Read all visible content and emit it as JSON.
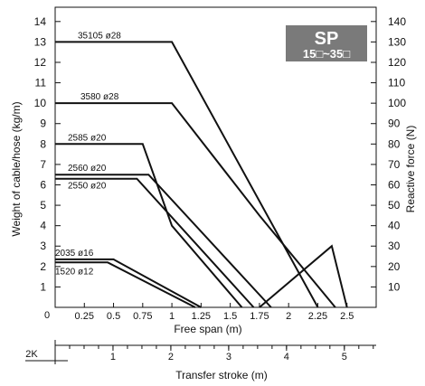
{
  "chart_data": {
    "type": "line",
    "badge": {
      "title": "SP",
      "subtitle": "15□~35□"
    },
    "xlabel": "Free span (m)",
    "ylabel": "Weight of cable/hose (kg/m)",
    "y2label": "Reactive force (N)",
    "xlim": [
      0,
      2.75
    ],
    "ylim": [
      0,
      14.7
    ],
    "y2lim": [
      0,
      147
    ],
    "x_ticks": [
      "0.25",
      "0.5",
      "0.75",
      "1",
      "1.25",
      "1.5",
      "1.75",
      "2",
      "2.25",
      "2.5"
    ],
    "x_tick_values": [
      0.25,
      0.5,
      0.75,
      1,
      1.25,
      1.5,
      1.75,
      2,
      2.25,
      2.5
    ],
    "origin_label": "0",
    "y_ticks": [
      1,
      2,
      3,
      4,
      5,
      6,
      7,
      8,
      9,
      10,
      11,
      12,
      13,
      14
    ],
    "y2_ticks": [
      10,
      20,
      30,
      40,
      50,
      60,
      70,
      80,
      90,
      100,
      110,
      120,
      130,
      140
    ],
    "series": [
      {
        "name": "35105 ø28",
        "points": [
          [
            0,
            13
          ],
          [
            1,
            13
          ],
          [
            2.25,
            0
          ]
        ]
      },
      {
        "name": "3580 ø28",
        "points": [
          [
            0,
            10
          ],
          [
            1,
            10
          ],
          [
            1.75,
            4.5
          ],
          [
            2.4,
            0
          ]
        ]
      },
      {
        "name": "2585 ø20",
        "points": [
          [
            0,
            8
          ],
          [
            0.75,
            8
          ],
          [
            1,
            4
          ],
          [
            1.6,
            0
          ]
        ]
      },
      {
        "name": "2560 ø20",
        "points": [
          [
            0,
            6.5
          ],
          [
            0.8,
            6.5
          ],
          [
            1.85,
            0
          ]
        ]
      },
      {
        "name": "2550 ø20",
        "points": [
          [
            0,
            6.3
          ],
          [
            0.7,
            6.3
          ],
          [
            1.7,
            0
          ]
        ]
      },
      {
        "name": "2035 ø16",
        "points": [
          [
            0,
            2.35
          ],
          [
            0.5,
            2.35
          ],
          [
            1.25,
            0
          ]
        ]
      },
      {
        "name": "1520 ø12",
        "points": [
          [
            0,
            2.2
          ],
          [
            0.45,
            2.2
          ],
          [
            1.2,
            0
          ]
        ]
      }
    ],
    "reactive_force_line": {
      "points": [
        [
          1.75,
          0
        ],
        [
          2.37,
          30
        ],
        [
          2.5,
          0
        ]
      ]
    },
    "stroke_axis": {
      "label": "Transfer stroke (m)",
      "prefix": "2K",
      "tick_labels": [
        "1",
        "2",
        "3",
        "4",
        "5"
      ],
      "tick_values": [
        1,
        2,
        3,
        4,
        5
      ],
      "xlim": [
        0,
        5.55
      ]
    }
  }
}
